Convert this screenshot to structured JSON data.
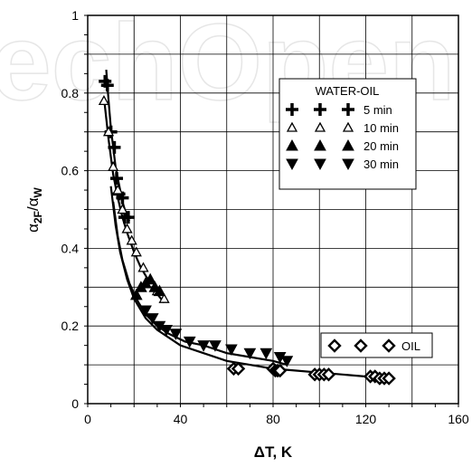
{
  "watermark": "echOpen",
  "chart_data": {
    "type": "scatter",
    "title": "",
    "xlabel": "ΔT, K",
    "ylabel_main": "α",
    "ylabel_sub1": "2F",
    "ylabel_slash": "/α",
    "ylabel_sub2": "W",
    "xlim": [
      0,
      160
    ],
    "ylim": [
      0,
      1
    ],
    "x_ticks": [
      0,
      40,
      80,
      120,
      160
    ],
    "y_ticks": [
      0,
      0.2,
      0.4,
      0.6,
      0.8,
      1
    ],
    "x_tick_labels": [
      "0",
      "40",
      "80",
      "120",
      "160"
    ],
    "y_tick_labels": [
      "0",
      "0.2",
      "0.4",
      "0.6",
      "0.8",
      "1"
    ],
    "grid": true,
    "legend_water_title": "WATER-OIL",
    "series": [
      {
        "name": "5 min",
        "marker": "plus",
        "x": [
          7.5,
          8.5,
          10.0,
          11.5,
          12.5,
          13.5,
          15.0,
          16.0,
          17.5
        ],
        "y": [
          0.83,
          0.82,
          0.7,
          0.66,
          0.58,
          0.54,
          0.53,
          0.48,
          0.48
        ]
      },
      {
        "name": "10 min",
        "marker": "triangle-open",
        "x": [
          7.0,
          9.0,
          11.0,
          13.0,
          15.0,
          17.0,
          19.0,
          21.0,
          24.0,
          27.0,
          30.0,
          33.0
        ],
        "y": [
          0.78,
          0.7,
          0.61,
          0.55,
          0.5,
          0.45,
          0.42,
          0.39,
          0.35,
          0.31,
          0.29,
          0.27
        ]
      },
      {
        "name": "20 min",
        "marker": "triangle-filled",
        "x": [
          21.0,
          23.0,
          25.0,
          27.0,
          29.0,
          31.0
        ],
        "y": [
          0.28,
          0.3,
          0.31,
          0.32,
          0.3,
          0.29
        ]
      },
      {
        "name": "30 min",
        "marker": "triangle-down-filled",
        "x": [
          25.0,
          28.0,
          31.0,
          34.0,
          38.0,
          44.0,
          50.0,
          55.0,
          62.0,
          70.0,
          77.0,
          83.0,
          86.0
        ],
        "y": [
          0.24,
          0.22,
          0.2,
          0.19,
          0.18,
          0.16,
          0.15,
          0.15,
          0.14,
          0.13,
          0.13,
          0.12,
          0.11
        ]
      },
      {
        "name": "OIL",
        "marker": "diamond-open",
        "x": [
          63.0,
          65.0,
          80.0,
          81.0,
          82.0,
          83.0,
          98.0,
          100.0,
          102.0,
          104.0,
          122.0,
          124.0,
          126.0,
          128.0,
          130.0
        ],
        "y": [
          0.09,
          0.09,
          0.09,
          0.085,
          0.085,
          0.085,
          0.075,
          0.075,
          0.075,
          0.075,
          0.07,
          0.07,
          0.065,
          0.065,
          0.065
        ]
      }
    ],
    "curves": [
      {
        "x": [
          8,
          9,
          10,
          11,
          12,
          13,
          14,
          15,
          16,
          17,
          18
        ],
        "y": [
          0.86,
          0.78,
          0.71,
          0.66,
          0.61,
          0.58,
          0.55,
          0.52,
          0.5,
          0.48,
          0.47
        ]
      },
      {
        "x": [
          7,
          9,
          11,
          13,
          15,
          17,
          20,
          23,
          26,
          29,
          33
        ],
        "y": [
          0.79,
          0.68,
          0.59,
          0.53,
          0.48,
          0.44,
          0.39,
          0.35,
          0.32,
          0.29,
          0.26
        ]
      },
      {
        "x": [
          11,
          13,
          15,
          18,
          21,
          25,
          30,
          35,
          42,
          50,
          60,
          70,
          80,
          86
        ],
        "y": [
          0.52,
          0.43,
          0.37,
          0.31,
          0.27,
          0.23,
          0.2,
          0.18,
          0.16,
          0.15,
          0.13,
          0.12,
          0.11,
          0.1
        ]
      },
      {
        "x": [
          10,
          12,
          14,
          17,
          20,
          25,
          30,
          40,
          50,
          60,
          70,
          80,
          90,
          100,
          110,
          120,
          130
        ],
        "y": [
          0.56,
          0.46,
          0.39,
          0.32,
          0.27,
          0.22,
          0.19,
          0.15,
          0.13,
          0.11,
          0.1,
          0.09,
          0.085,
          0.08,
          0.075,
          0.07,
          0.068
        ]
      }
    ]
  }
}
